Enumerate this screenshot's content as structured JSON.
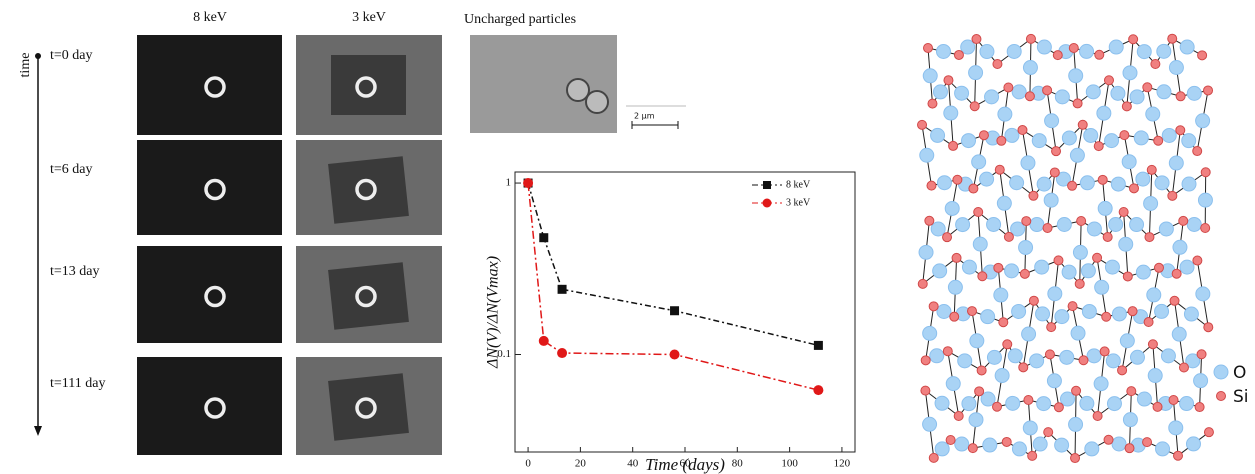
{
  "panels": {
    "columns": [
      "8 keV",
      "3 keV",
      "Uncharged particles"
    ],
    "time_axis": "time",
    "rows": [
      "t=0 day",
      "t=6 day",
      "t=13 day",
      "t=111 day"
    ],
    "scale_bar": "2 µm"
  },
  "chart_data": {
    "type": "line",
    "x_label": "Time (days)",
    "y_label": "ΔN(V)/ΔN(Vmax)",
    "log_y": true,
    "xlim": [
      -5,
      125
    ],
    "xticks": [
      0,
      20,
      40,
      60,
      80,
      100,
      120
    ],
    "ylim": [
      0.027,
      1.16
    ],
    "yticks": [
      0.1,
      1
    ],
    "series": [
      {
        "name": "8 keV",
        "color": "#111111",
        "marker": "square",
        "x": [
          0,
          6,
          13,
          56,
          111
        ],
        "values": [
          1,
          0.48,
          0.24,
          0.18,
          0.113
        ]
      },
      {
        "name": "3 keV",
        "color": "#e01818",
        "marker": "circle",
        "x": [
          0,
          6,
          13,
          56,
          111
        ],
        "values": [
          1,
          0.12,
          0.102,
          0.1,
          0.062
        ]
      }
    ]
  },
  "network_legend": [
    "O",
    "Si"
  ]
}
